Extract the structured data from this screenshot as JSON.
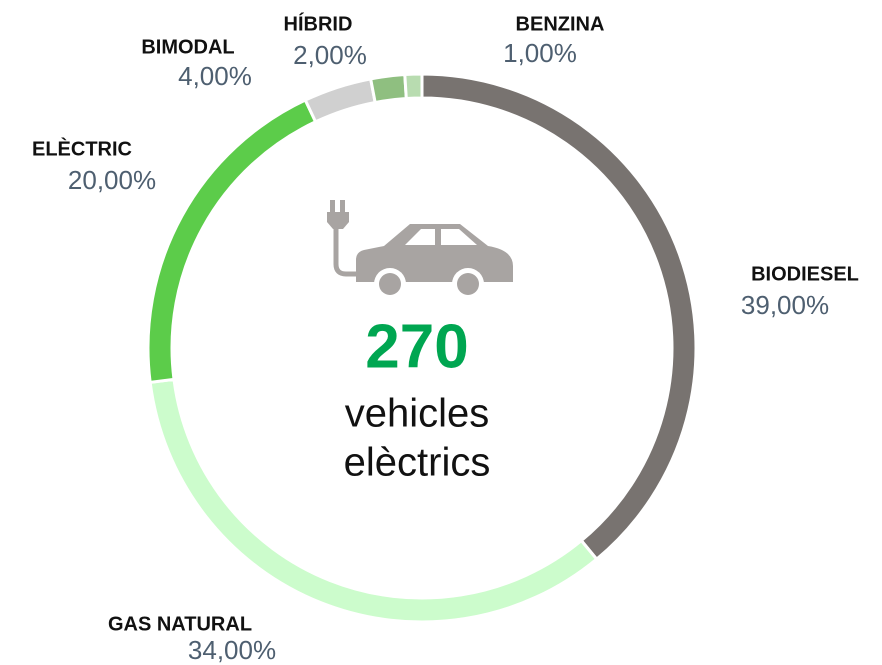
{
  "chart_data": {
    "type": "donut",
    "categories": [
      "BIODIESEL",
      "GAS NATURAL",
      "ELÈCTRIC",
      "BIMODAL",
      "HÍBRID",
      "BENZINA"
    ],
    "values": [
      39,
      34,
      20,
      4,
      2,
      1
    ],
    "value_labels": [
      "39,00%",
      "34,00%",
      "20,00%",
      "4,00%",
      "2,00%",
      "1,00%"
    ],
    "colors": [
      "#787370",
      "#ccfccc",
      "#5ccc4a",
      "#d0d0d0",
      "#8fbf80",
      "#b8dcb0"
    ],
    "center_value": 270,
    "center_label": [
      "vehicles",
      "elèctrics"
    ]
  }
}
